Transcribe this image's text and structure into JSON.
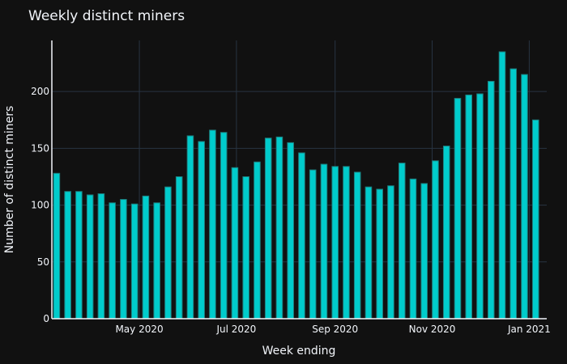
{
  "chart_data": {
    "type": "bar",
    "title": "Weekly distinct miners",
    "xlabel": "Week ending",
    "ylabel": "Number of distinct miners",
    "ylim": [
      0,
      245
    ],
    "xlim": [
      "2020-03-07",
      "2021-01-12"
    ],
    "y_ticks": [
      0,
      50,
      100,
      150,
      200
    ],
    "x_ticks": [
      {
        "date": "2020-05-01",
        "label": "May 2020"
      },
      {
        "date": "2020-07-01",
        "label": "Jul 2020"
      },
      {
        "date": "2020-09-01",
        "label": "Sep 2020"
      },
      {
        "date": "2020-11-01",
        "label": "Nov 2020"
      },
      {
        "date": "2021-01-01",
        "label": "Jan 2021"
      }
    ],
    "grid": true,
    "bar_color": "#00cccc",
    "bar_outline_color": "#1e7f7f",
    "background": "#111111",
    "x": [
      "2020-03-10",
      "2020-03-17",
      "2020-03-24",
      "2020-03-31",
      "2020-04-07",
      "2020-04-14",
      "2020-04-21",
      "2020-04-28",
      "2020-05-05",
      "2020-05-12",
      "2020-05-19",
      "2020-05-26",
      "2020-06-02",
      "2020-06-09",
      "2020-06-16",
      "2020-06-23",
      "2020-06-30",
      "2020-07-07",
      "2020-07-14",
      "2020-07-21",
      "2020-07-28",
      "2020-08-04",
      "2020-08-11",
      "2020-08-18",
      "2020-08-25",
      "2020-09-01",
      "2020-09-08",
      "2020-09-15",
      "2020-09-22",
      "2020-09-29",
      "2020-10-06",
      "2020-10-13",
      "2020-10-20",
      "2020-10-27",
      "2020-11-03",
      "2020-11-10",
      "2020-11-17",
      "2020-11-24",
      "2020-12-01",
      "2020-12-08",
      "2020-12-15",
      "2020-12-22",
      "2020-12-29",
      "2021-01-05"
    ],
    "values": [
      128,
      112,
      112,
      109,
      110,
      102,
      105,
      101,
      108,
      102,
      116,
      125,
      161,
      156,
      166,
      164,
      133,
      125,
      138,
      159,
      160,
      155,
      146,
      131,
      136,
      134,
      134,
      129,
      116,
      114,
      117,
      137,
      123,
      119,
      139,
      152,
      194,
      197,
      198,
      209,
      235,
      220,
      215,
      175
    ]
  }
}
